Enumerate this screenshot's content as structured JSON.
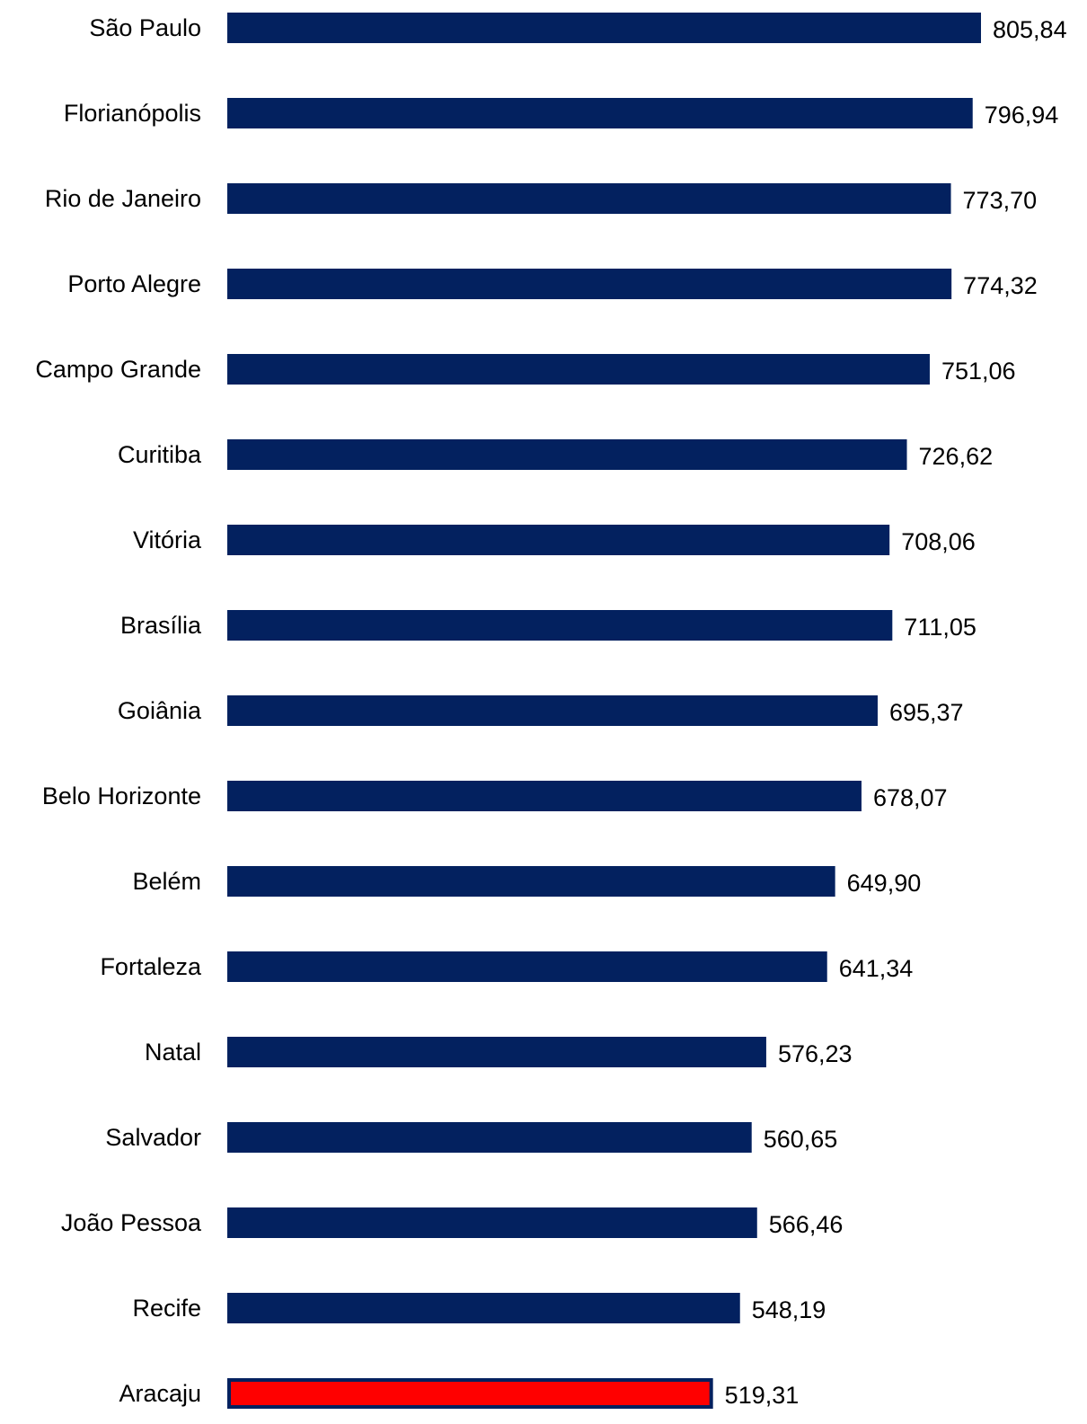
{
  "chart_data": {
    "type": "bar",
    "orientation": "horizontal",
    "categories": [
      "São Paulo",
      "Florianópolis",
      "Rio de Janeiro",
      "Porto Alegre",
      "Campo Grande",
      "Curitiba",
      "Vitória",
      "Brasília",
      "Goiânia",
      "Belo Horizonte",
      "Belém",
      "Fortaleza",
      "Natal",
      "Salvador",
      "João Pessoa",
      "Recife",
      "Aracaju"
    ],
    "values": [
      805.84,
      796.94,
      773.7,
      774.32,
      751.06,
      726.62,
      708.06,
      711.05,
      695.37,
      678.07,
      649.9,
      641.34,
      576.23,
      560.65,
      566.46,
      548.19,
      519.31
    ],
    "value_labels": [
      "805,84",
      "796,94",
      "773,70",
      "774,32",
      "751,06",
      "726,62",
      "708,06",
      "711,05",
      "695,37",
      "678,07",
      "649,90",
      "641,34",
      "576,23",
      "560,65",
      "566,46",
      "548,19",
      "519,31"
    ],
    "highlight_category": "Aracaju",
    "colors": {
      "bar": "#03215f",
      "highlight_fill": "#ff0000",
      "highlight_border": "#03215f"
    },
    "xlim": [
      0,
      805.84
    ],
    "grid": false,
    "legend": "none"
  }
}
